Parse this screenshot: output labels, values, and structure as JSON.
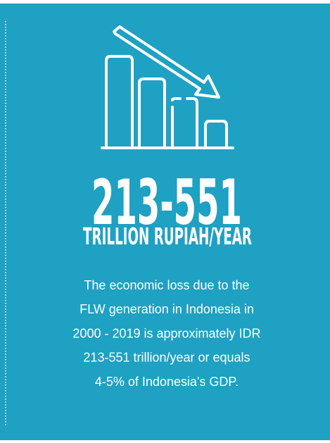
{
  "headline": {
    "figure": "213-551",
    "unit": "TRILLION RUPIAH/YEAR"
  },
  "description": {
    "lines": [
      "The economic loss due to the",
      "FLW generation in Indonesia in",
      "2000 - 2019 is approximately IDR",
      "213-551 trillion/year or equals",
      "4-5% of Indonesia's GDP."
    ]
  }
}
